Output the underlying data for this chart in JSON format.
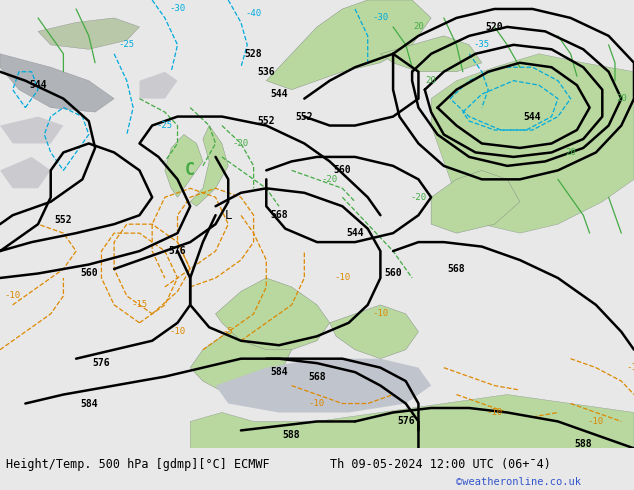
{
  "title_left": "Height/Temp. 500 hPa [gdmp][°C] ECMWF",
  "title_right": "Th 09-05-2024 12:00 UTC (06+̄4)",
  "watermark": "©weatheronline.co.uk",
  "title_fontsize": 8.5,
  "watermark_color": "#3355cc",
  "bg_map_color": "#d0d0d8",
  "land_green": "#b8d8a0",
  "land_gray": "#b0b0b8",
  "sea_light": "#c8c8d4",
  "bottom_bar_color": "#e8e8e8"
}
